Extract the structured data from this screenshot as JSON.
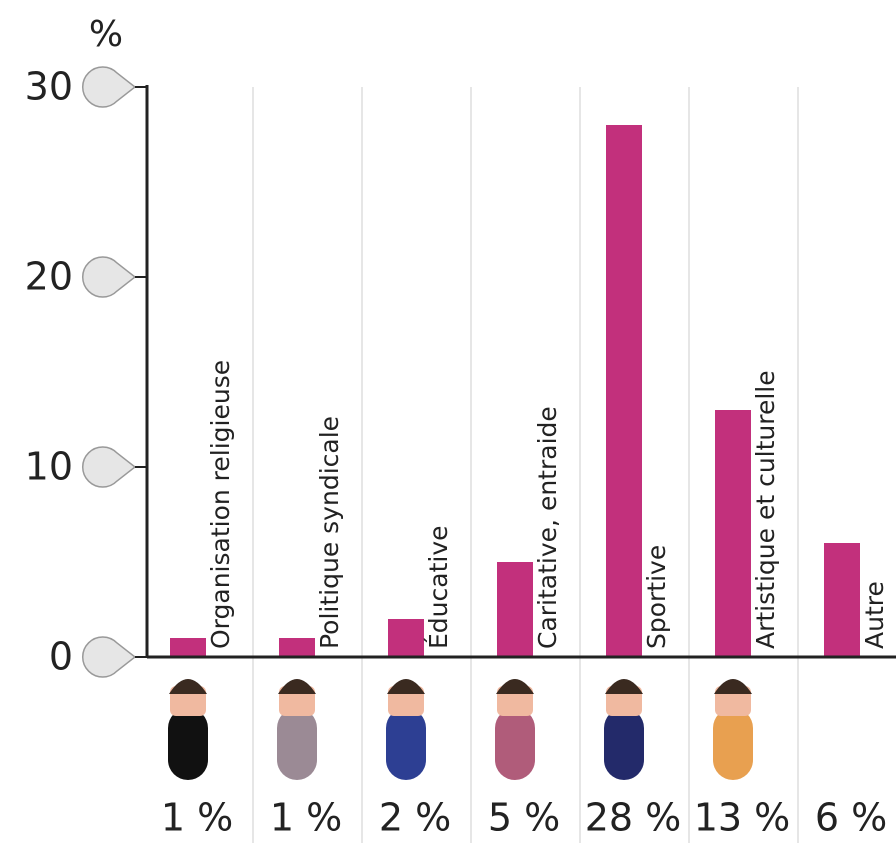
{
  "chart_data": {
    "type": "bar",
    "y_axis_label": "%",
    "categories": [
      "Organisation religieuse",
      "Politique syndicale",
      "Éducative",
      "Caritative, entraide",
      "Sportive",
      "Artistique et culturelle",
      "Autre"
    ],
    "values": [
      1,
      1,
      2,
      5,
      28,
      13,
      6
    ],
    "value_labels": [
      "1 %",
      "1 %",
      "2 %",
      "5 %",
      "28 %",
      "13 %",
      "6 %"
    ],
    "color": "#c2307c",
    "ylim": [
      0,
      30
    ],
    "yticks": [
      0,
      10,
      20,
      30
    ]
  }
}
